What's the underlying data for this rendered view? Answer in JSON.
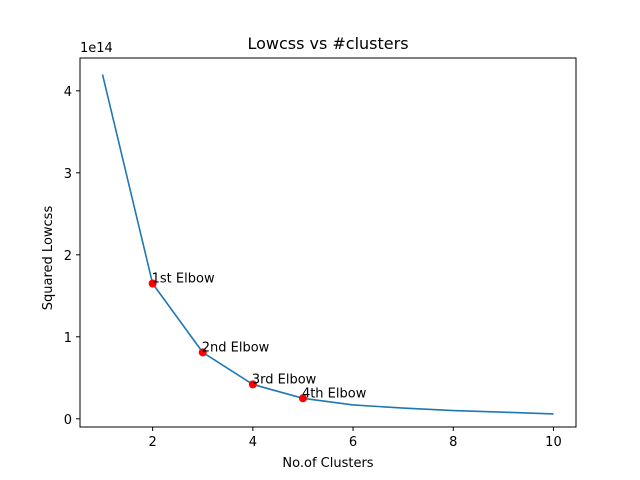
{
  "chart_data": {
    "type": "line",
    "title": "Lowcss vs #clusters",
    "xlabel": "No.of Clusters",
    "ylabel": "Squared Lowcss",
    "y_offset_label": "1e14",
    "y_scale": 100000000000000.0,
    "xlim": [
      0.55,
      10.45
    ],
    "ylim": [
      -0.1,
      4.4
    ],
    "x_ticks": [
      2,
      4,
      6,
      8,
      10
    ],
    "y_ticks": [
      0,
      1,
      2,
      3,
      4
    ],
    "grid": false,
    "series": [
      {
        "color": "#1f77b4",
        "x": [
          1,
          2,
          3,
          4,
          5,
          6,
          7,
          8,
          9,
          10
        ],
        "y": [
          4.2,
          1.65,
          0.81,
          0.42,
          0.25,
          0.17,
          0.13,
          0.1,
          0.08,
          0.06
        ]
      }
    ],
    "markers": {
      "color": "#ff0000",
      "points": [
        {
          "x": 2,
          "y": 1.65,
          "label": "1st Elbow"
        },
        {
          "x": 3,
          "y": 0.81,
          "label": "2nd Elbow"
        },
        {
          "x": 4,
          "y": 0.42,
          "label": "3rd Elbow"
        },
        {
          "x": 5,
          "y": 0.25,
          "label": "4th Elbow"
        }
      ]
    }
  }
}
